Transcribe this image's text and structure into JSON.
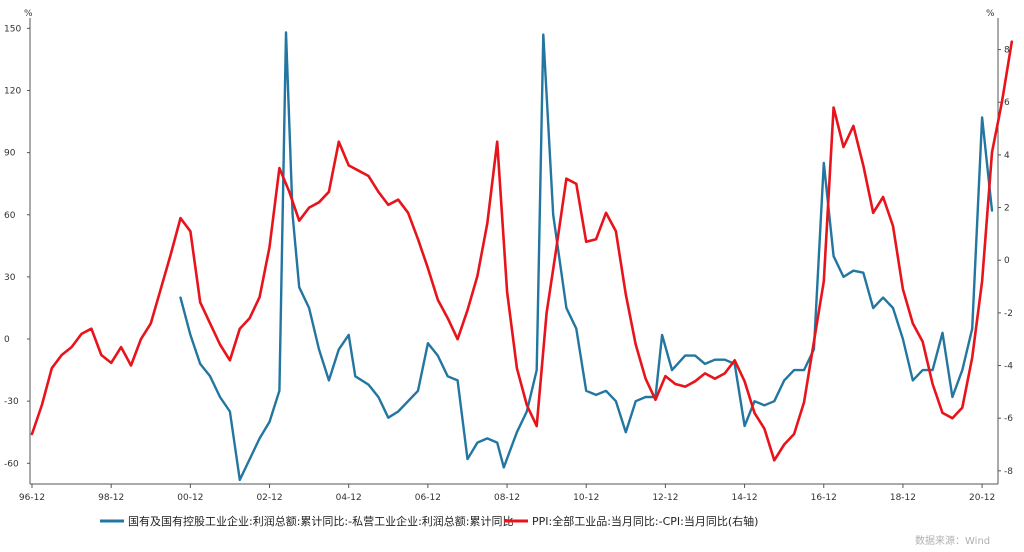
{
  "chart_data": {
    "type": "line",
    "y_left_unit": "%",
    "y_right_unit": "%",
    "y_left_range": [
      -70,
      155
    ],
    "y_right_range": [
      -8.5,
      9.2
    ],
    "y_left_ticks": [
      "150",
      "120",
      "90",
      "60",
      "30",
      "0",
      "-30",
      "-60"
    ],
    "y_right_ticks": [
      "8",
      "6",
      "4",
      "2",
      "0",
      "-2",
      "-4",
      "-6",
      "-8"
    ],
    "x_ticks": [
      "96-12",
      "98-12",
      "00-12",
      "02-12",
      "04-12",
      "06-12",
      "08-12",
      "10-12",
      "12-12",
      "14-12",
      "16-12",
      "18-12",
      "20-12"
    ],
    "x_range": [
      "1996-12",
      "2021-03"
    ],
    "grid": false,
    "legend": "bottom",
    "series": [
      {
        "name": "国有及国有控股工业企业:利润总额:累计同比:-私营工业企业:利润总额:累计同比",
        "axis": "left",
        "color": "#2276a0",
        "points": [
          [
            "2000-09",
            20
          ],
          [
            "2000-12",
            2
          ],
          [
            "2001-03",
            -12
          ],
          [
            "2001-06",
            -18
          ],
          [
            "2001-09",
            -28
          ],
          [
            "2001-12",
            -35
          ],
          [
            "2002-03",
            -68
          ],
          [
            "2002-06",
            -58
          ],
          [
            "2002-09",
            -48
          ],
          [
            "2002-12",
            -40
          ],
          [
            "2003-03",
            -25
          ],
          [
            "2003-05",
            148
          ],
          [
            "2003-07",
            60
          ],
          [
            "2003-09",
            25
          ],
          [
            "2003-12",
            15
          ],
          [
            "2004-03",
            -5
          ],
          [
            "2004-06",
            -20
          ],
          [
            "2004-09",
            -5
          ],
          [
            "2004-12",
            2
          ],
          [
            "2005-02",
            -18
          ],
          [
            "2005-06",
            -22
          ],
          [
            "2005-09",
            -28
          ],
          [
            "2005-12",
            -38
          ],
          [
            "2006-03",
            -35
          ],
          [
            "2006-09",
            -25
          ],
          [
            "2006-12",
            -2
          ],
          [
            "2007-03",
            -8
          ],
          [
            "2007-06",
            -18
          ],
          [
            "2007-09",
            -20
          ],
          [
            "2007-12",
            -58
          ],
          [
            "2008-03",
            -50
          ],
          [
            "2008-06",
            -48
          ],
          [
            "2008-09",
            -50
          ],
          [
            "2008-11",
            -62
          ],
          [
            "2009-03",
            -45
          ],
          [
            "2009-06",
            -35
          ],
          [
            "2009-09",
            -15
          ],
          [
            "2009-11",
            147
          ],
          [
            "2010-02",
            60
          ],
          [
            "2010-06",
            15
          ],
          [
            "2010-09",
            5
          ],
          [
            "2010-12",
            -25
          ],
          [
            "2011-03",
            -27
          ],
          [
            "2011-06",
            -25
          ],
          [
            "2011-09",
            -30
          ],
          [
            "2011-12",
            -45
          ],
          [
            "2012-03",
            -30
          ],
          [
            "2012-06",
            -28
          ],
          [
            "2012-09",
            -28
          ],
          [
            "2012-11",
            2
          ],
          [
            "2013-02",
            -15
          ],
          [
            "2013-06",
            -8
          ],
          [
            "2013-09",
            -8
          ],
          [
            "2013-12",
            -12
          ],
          [
            "2014-03",
            -10
          ],
          [
            "2014-06",
            -10
          ],
          [
            "2014-09",
            -12
          ],
          [
            "2014-12",
            -42
          ],
          [
            "2015-03",
            -30
          ],
          [
            "2015-06",
            -32
          ],
          [
            "2015-09",
            -30
          ],
          [
            "2015-12",
            -20
          ],
          [
            "2016-03",
            -15
          ],
          [
            "2016-06",
            -15
          ],
          [
            "2016-09",
            -5
          ],
          [
            "2016-12",
            85
          ],
          [
            "2017-03",
            40
          ],
          [
            "2017-06",
            30
          ],
          [
            "2017-09",
            33
          ],
          [
            "2017-12",
            32
          ],
          [
            "2018-03",
            15
          ],
          [
            "2018-06",
            20
          ],
          [
            "2018-09",
            15
          ],
          [
            "2018-12",
            0
          ],
          [
            "2019-03",
            -20
          ],
          [
            "2019-06",
            -15
          ],
          [
            "2019-09",
            -15
          ],
          [
            "2019-12",
            3
          ],
          [
            "2020-03",
            -28
          ],
          [
            "2020-06",
            -15
          ],
          [
            "2020-09",
            5
          ],
          [
            "2020-12",
            107
          ],
          [
            "2021-03",
            62
          ]
        ]
      },
      {
        "name": "PPI:全部工业品:当月同比:-CPI:当月同比(右轴)",
        "axis": "right",
        "color": "#e8141c",
        "points": [
          [
            "1996-12",
            -6.6
          ],
          [
            "1997-03",
            -5.5
          ],
          [
            "1997-06",
            -4.1
          ],
          [
            "1997-09",
            -3.6
          ],
          [
            "1997-12",
            -3.3
          ],
          [
            "1998-03",
            -2.8
          ],
          [
            "1998-06",
            -2.6
          ],
          [
            "1998-09",
            -3.6
          ],
          [
            "1998-12",
            -3.9
          ],
          [
            "1999-03",
            -3.3
          ],
          [
            "1999-06",
            -4.0
          ],
          [
            "1999-09",
            -3.0
          ],
          [
            "1999-12",
            -2.4
          ],
          [
            "2000-03",
            -1.1
          ],
          [
            "2000-06",
            0.2
          ],
          [
            "2000-09",
            1.6
          ],
          [
            "2000-12",
            1.1
          ],
          [
            "2001-03",
            -1.6
          ],
          [
            "2001-06",
            -2.4
          ],
          [
            "2001-09",
            -3.2
          ],
          [
            "2001-12",
            -3.8
          ],
          [
            "2002-03",
            -2.6
          ],
          [
            "2002-06",
            -2.2
          ],
          [
            "2002-09",
            -1.4
          ],
          [
            "2002-12",
            0.5
          ],
          [
            "2003-03",
            3.5
          ],
          [
            "2003-06",
            2.6
          ],
          [
            "2003-09",
            1.5
          ],
          [
            "2003-12",
            2.0
          ],
          [
            "2004-03",
            2.2
          ],
          [
            "2004-06",
            2.6
          ],
          [
            "2004-09",
            4.5
          ],
          [
            "2004-12",
            3.6
          ],
          [
            "2005-03",
            3.4
          ],
          [
            "2005-06",
            3.2
          ],
          [
            "2005-09",
            2.6
          ],
          [
            "2005-12",
            2.1
          ],
          [
            "2006-03",
            2.3
          ],
          [
            "2006-06",
            1.8
          ],
          [
            "2006-09",
            0.8
          ],
          [
            "2006-12",
            -0.3
          ],
          [
            "2007-03",
            -1.5
          ],
          [
            "2007-06",
            -2.2
          ],
          [
            "2007-09",
            -3.0
          ],
          [
            "2007-12",
            -1.9
          ],
          [
            "2008-03",
            -0.6
          ],
          [
            "2008-06",
            1.4
          ],
          [
            "2008-09",
            4.5
          ],
          [
            "2008-12",
            -1.2
          ],
          [
            "2009-03",
            -4.1
          ],
          [
            "2009-06",
            -5.5
          ],
          [
            "2009-09",
            -6.3
          ],
          [
            "2009-12",
            -2.0
          ],
          [
            "2010-03",
            0.5
          ],
          [
            "2010-06",
            3.1
          ],
          [
            "2010-09",
            2.9
          ],
          [
            "2010-12",
            0.7
          ],
          [
            "2011-03",
            0.8
          ],
          [
            "2011-06",
            1.8
          ],
          [
            "2011-09",
            1.1
          ],
          [
            "2011-12",
            -1.3
          ],
          [
            "2012-03",
            -3.2
          ],
          [
            "2012-06",
            -4.5
          ],
          [
            "2012-09",
            -5.3
          ],
          [
            "2012-12",
            -4.4
          ],
          [
            "2013-03",
            -4.7
          ],
          [
            "2013-06",
            -4.8
          ],
          [
            "2013-09",
            -4.6
          ],
          [
            "2013-12",
            -4.3
          ],
          [
            "2014-03",
            -4.5
          ],
          [
            "2014-06",
            -4.3
          ],
          [
            "2014-09",
            -3.8
          ],
          [
            "2014-12",
            -4.6
          ],
          [
            "2015-03",
            -5.8
          ],
          [
            "2015-06",
            -6.4
          ],
          [
            "2015-09",
            -7.6
          ],
          [
            "2015-12",
            -7.0
          ],
          [
            "2016-03",
            -6.6
          ],
          [
            "2016-06",
            -5.4
          ],
          [
            "2016-09",
            -3.1
          ],
          [
            "2016-12",
            -0.8
          ],
          [
            "2017-03",
            5.8
          ],
          [
            "2017-06",
            4.3
          ],
          [
            "2017-09",
            5.1
          ],
          [
            "2017-12",
            3.6
          ],
          [
            "2018-03",
            1.8
          ],
          [
            "2018-06",
            2.4
          ],
          [
            "2018-09",
            1.3
          ],
          [
            "2018-12",
            -1.1
          ],
          [
            "2019-03",
            -2.4
          ],
          [
            "2019-06",
            -3.1
          ],
          [
            "2019-09",
            -4.7
          ],
          [
            "2019-12",
            -5.8
          ],
          [
            "2020-03",
            -6.0
          ],
          [
            "2020-06",
            -5.6
          ],
          [
            "2020-09",
            -3.7
          ],
          [
            "2020-12",
            -0.8
          ],
          [
            "2021-03",
            4.1
          ],
          [
            "2021-06",
            6.0
          ],
          [
            "2021-09",
            8.3
          ]
        ]
      }
    ]
  },
  "source_text": "数据来源：Wind"
}
